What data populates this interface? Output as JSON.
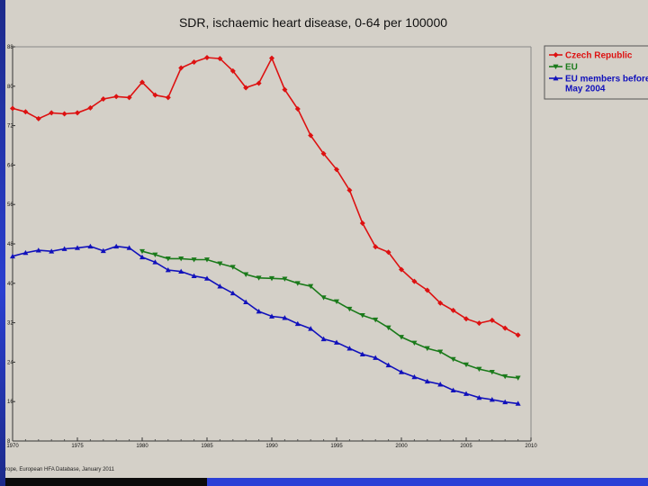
{
  "chart_data": {
    "type": "line",
    "title": "SDR, ischaemic heart disease, 0-64 per 100000",
    "xlabel": "",
    "ylabel": "",
    "xlim": [
      1970,
      2010
    ],
    "ylim": [
      8,
      88
    ],
    "x_ticks": [
      1970,
      1975,
      1980,
      1985,
      1990,
      1995,
      2000,
      2005,
      2010
    ],
    "y_ticks": [
      8,
      16,
      24,
      32,
      40,
      48,
      56,
      64,
      72,
      80,
      88
    ],
    "grid": false,
    "legend_position": "top-right",
    "source_note": "rope, European HFA Database, January 2011",
    "series": [
      {
        "name": "Czech Republic",
        "color": "#dd1111",
        "marker": "diamond",
        "x": [
          1970,
          1971,
          1972,
          1973,
          1974,
          1975,
          1976,
          1977,
          1978,
          1979,
          1980,
          1981,
          1982,
          1983,
          1984,
          1985,
          1986,
          1987,
          1988,
          1989,
          1990,
          1991,
          1992,
          1993,
          1994,
          1995,
          1996,
          1997,
          1998,
          1999,
          2000,
          2001,
          2002,
          2003,
          2004,
          2005,
          2006,
          2007,
          2008,
          2009
        ],
        "values": [
          75.5,
          74.8,
          73.4,
          74.6,
          74.4,
          74.6,
          75.6,
          77.4,
          77.9,
          77.7,
          80.8,
          78.2,
          77.7,
          83.7,
          84.9,
          85.8,
          85.6,
          83.1,
          79.7,
          80.6,
          85.7,
          79.3,
          75.4,
          70.0,
          66.3,
          63.1,
          58.9,
          52.2,
          47.4,
          46.3,
          42.8,
          40.4,
          38.6,
          36.0,
          34.5,
          32.8,
          31.9,
          32.5,
          30.9,
          29.5
        ]
      },
      {
        "name": "EU",
        "color": "#1a7a1a",
        "marker": "triangle-down",
        "x": [
          1980,
          1981,
          1982,
          1983,
          1984,
          1985,
          1986,
          1987,
          1988,
          1989,
          1990,
          1991,
          1992,
          1993,
          1994,
          1995,
          1996,
          1997,
          1998,
          1999,
          2000,
          2001,
          2002,
          2003,
          2004,
          2005,
          2006,
          2007,
          2008,
          2009
        ],
        "values": [
          46.5,
          45.8,
          45.0,
          45.0,
          44.8,
          44.8,
          44.0,
          43.3,
          41.8,
          41.1,
          41.0,
          40.9,
          40.0,
          39.4,
          37.1,
          36.3,
          34.8,
          33.5,
          32.6,
          31.0,
          29.1,
          27.9,
          26.8,
          26.1,
          24.6,
          23.5,
          22.6,
          22.0,
          21.1,
          20.8
        ]
      },
      {
        "name": "EU members before May 2004",
        "color": "#1111bb",
        "marker": "triangle-up",
        "x": [
          1970,
          1971,
          1972,
          1973,
          1974,
          1975,
          1976,
          1977,
          1978,
          1979,
          1980,
          1981,
          1982,
          1983,
          1984,
          1985,
          1986,
          1987,
          1988,
          1989,
          1990,
          1991,
          1992,
          1993,
          1994,
          1995,
          1996,
          1997,
          1998,
          1999,
          2000,
          2001,
          2002,
          2003,
          2004,
          2005,
          2006,
          2007,
          2008,
          2009
        ],
        "values": [
          45.5,
          46.2,
          46.7,
          46.5,
          47.0,
          47.2,
          47.5,
          46.6,
          47.5,
          47.2,
          45.3,
          44.3,
          42.7,
          42.4,
          41.5,
          41.0,
          39.4,
          38.0,
          36.2,
          34.3,
          33.3,
          33.0,
          31.8,
          30.8,
          28.7,
          28.0,
          26.8,
          25.6,
          24.9,
          23.4,
          22.0,
          21.0,
          20.1,
          19.5,
          18.3,
          17.6,
          16.8,
          16.4,
          15.9,
          15.6
        ]
      }
    ]
  }
}
